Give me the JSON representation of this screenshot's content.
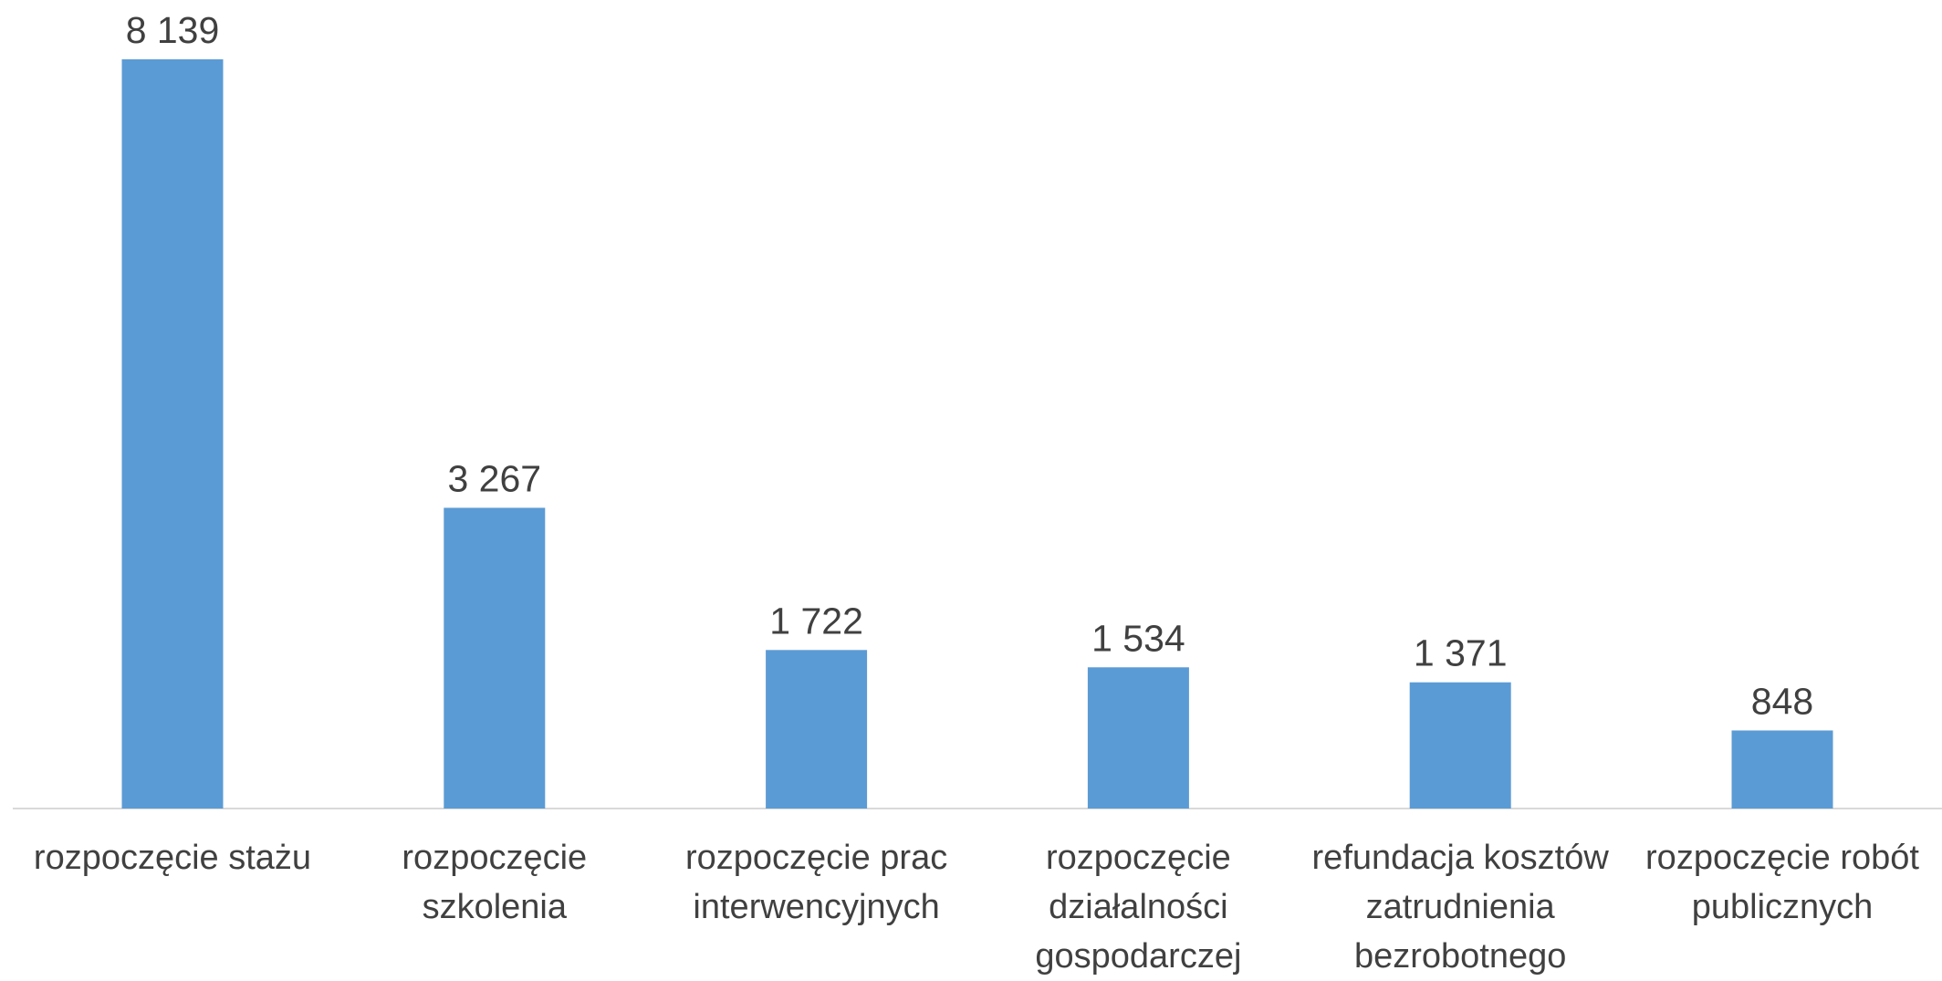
{
  "chart_data": {
    "type": "bar",
    "categories": [
      "rozpoczęcie stażu",
      "rozpoczęcie szkolenia",
      "rozpoczęcie prac interwencyjnych",
      "rozpoczęcie działalności gospodarczej",
      "refundacja kosztów zatrudnienia bezrobotnego",
      "rozpoczęcie robót publicznych"
    ],
    "values": [
      8139,
      3267,
      1722,
      1534,
      1371,
      848
    ],
    "value_labels": [
      "8 139",
      "3 267",
      "1 722",
      "1 534",
      "1 371",
      "848"
    ],
    "color": "#5b9bd5"
  }
}
